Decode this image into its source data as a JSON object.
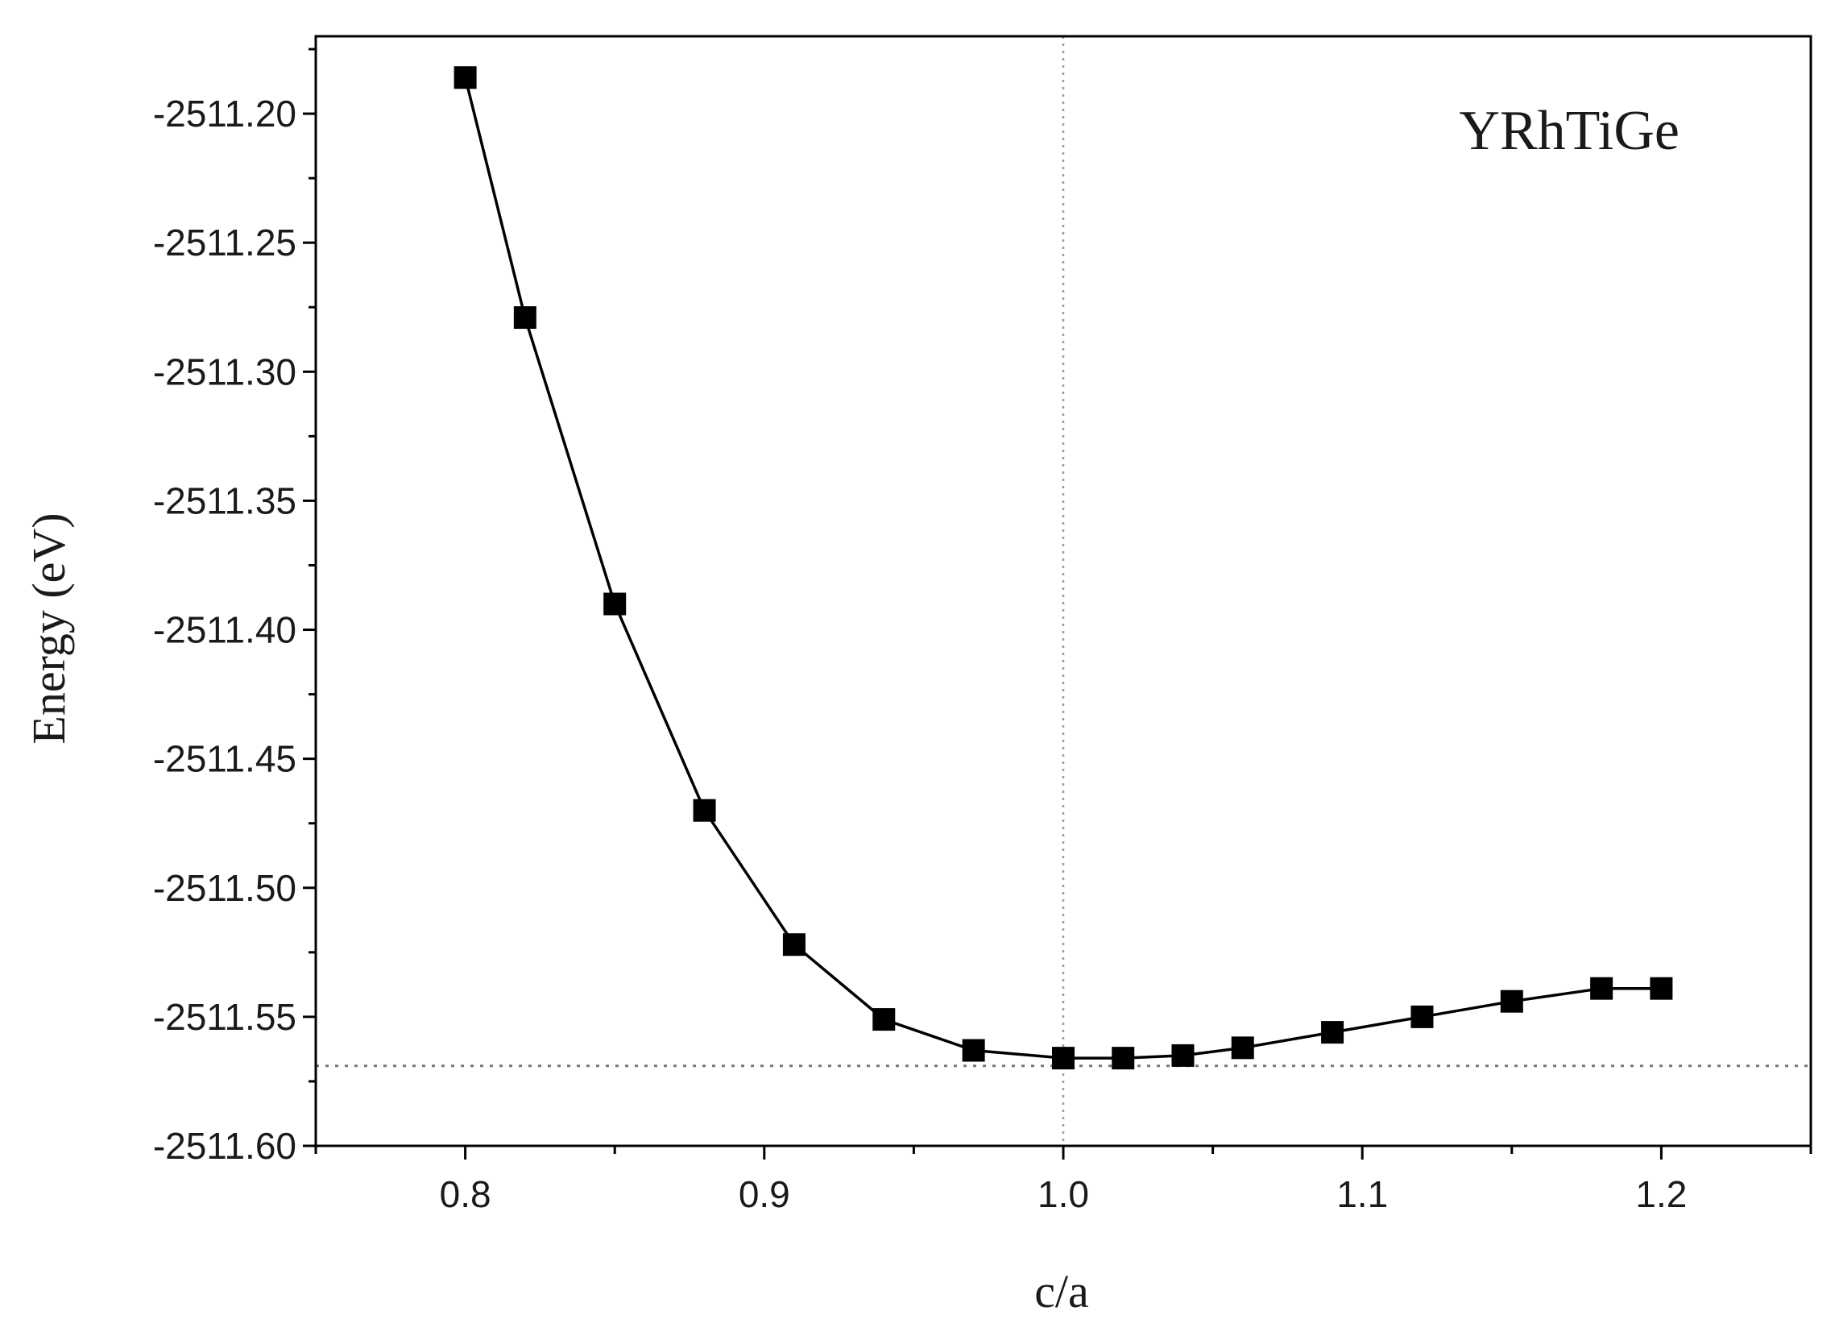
{
  "chart_data": {
    "type": "line",
    "title": "",
    "annotation": "YRhTiGe",
    "xlabel": "c/a",
    "ylabel": "Energy (eV)",
    "xlim": [
      0.75,
      1.25
    ],
    "ylim": [
      -2511.6,
      -2511.17
    ],
    "xticks": [
      0.8,
      0.9,
      1.0,
      1.1,
      1.2
    ],
    "xtick_labels": [
      "0.8",
      "0.9",
      "1.0",
      "1.1",
      "1.2"
    ],
    "yticks": [
      -2511.2,
      -2511.25,
      -2511.3,
      -2511.35,
      -2511.4,
      -2511.45,
      -2511.5,
      -2511.55,
      -2511.6
    ],
    "ytick_labels": [
      "-2511.20",
      "-2511.25",
      "-2511.30",
      "-2511.35",
      "-2511.40",
      "-2511.45",
      "-2511.50",
      "-2511.55",
      "-2511.60"
    ],
    "grid": false,
    "reference_lines": {
      "vertical_x": 1.0,
      "horizontal_y": -2511.569
    },
    "series": [
      {
        "marker": "square",
        "color": "#000000",
        "x": [
          0.8,
          0.82,
          0.85,
          0.88,
          0.91,
          0.94,
          0.97,
          1.0,
          1.02,
          1.04,
          1.06,
          1.09,
          1.12,
          1.15,
          1.18,
          1.2
        ],
        "y": [
          -2511.186,
          -2511.279,
          -2511.39,
          -2511.47,
          -2511.522,
          -2511.551,
          -2511.563,
          -2511.566,
          -2511.566,
          -2511.565,
          -2511.562,
          -2511.556,
          -2511.55,
          -2511.544,
          -2511.539,
          -2511.539
        ]
      }
    ]
  }
}
